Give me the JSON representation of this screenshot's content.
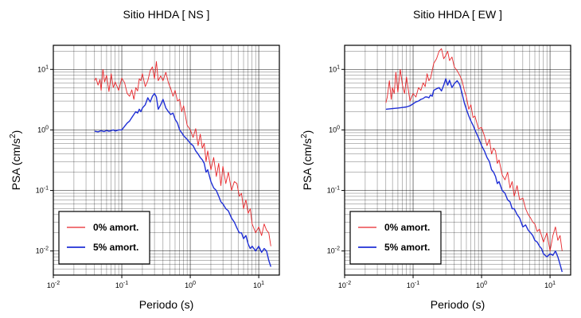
{
  "chart_data": [
    {
      "type": "line",
      "title": "Sitio HHDA [ NS ]",
      "xlabel": "Periodo (s)",
      "ylabel_base": "PSA (cm/s",
      "ylabel_exp": "2",
      "ylabel_close": ")",
      "xscale": "log",
      "yscale": "log",
      "xlim": [
        0.01,
        20
      ],
      "ylim": [
        0.004,
        25
      ],
      "grid": true,
      "legend_position": "bottom-left",
      "x_ticks": [
        {
          "base": "10",
          "exp": "-2",
          "value": 0.01
        },
        {
          "base": "10",
          "exp": "-1",
          "value": 0.1
        },
        {
          "base": "10",
          "exp": "0",
          "value": 1
        },
        {
          "base": "10",
          "exp": "1",
          "value": 10
        }
      ],
      "y_ticks": [
        {
          "base": "10",
          "exp": "-2",
          "value": 0.01
        },
        {
          "base": "10",
          "exp": "-1",
          "value": 0.1
        },
        {
          "base": "10",
          "exp": "0",
          "value": 1
        },
        {
          "base": "10",
          "exp": "1",
          "value": 10
        }
      ],
      "series": [
        {
          "name": "0% amort.",
          "color": "#e8262a",
          "x": [
            0.04,
            0.042,
            0.045,
            0.048,
            0.05,
            0.053,
            0.056,
            0.06,
            0.065,
            0.07,
            0.075,
            0.08,
            0.09,
            0.1,
            0.11,
            0.12,
            0.13,
            0.14,
            0.15,
            0.16,
            0.17,
            0.18,
            0.19,
            0.2,
            0.22,
            0.24,
            0.26,
            0.28,
            0.3,
            0.32,
            0.34,
            0.37,
            0.4,
            0.44,
            0.48,
            0.52,
            0.56,
            0.6,
            0.65,
            0.7,
            0.75,
            0.8,
            0.9,
            1.0,
            1.1,
            1.2,
            1.3,
            1.4,
            1.5,
            1.6,
            1.7,
            1.8,
            2.0,
            2.2,
            2.4,
            2.6,
            2.8,
            3.0,
            3.3,
            3.6,
            4.0,
            4.4,
            4.8,
            5.2,
            5.6,
            6.0,
            6.5,
            7.0,
            7.5,
            8.0,
            9.0,
            10.0,
            11.0,
            12.0,
            13.0,
            14.0,
            15.0
          ],
          "y": [
            6.5,
            7.2,
            5.5,
            6.8,
            4.5,
            10.0,
            6.2,
            8.0,
            4.3,
            8.5,
            5.0,
            6.2,
            4.5,
            7.2,
            6.0,
            4.0,
            3.6,
            4.6,
            3.2,
            5.0,
            4.4,
            7.0,
            6.5,
            8.5,
            5.2,
            6.5,
            9.5,
            11.0,
            7.0,
            13.5,
            6.5,
            7.8,
            6.5,
            9.0,
            6.0,
            4.8,
            3.6,
            4.5,
            3.0,
            3.2,
            2.0,
            2.5,
            1.2,
            1.0,
            0.75,
            1.05,
            0.55,
            0.85,
            0.5,
            0.6,
            0.3,
            0.45,
            0.22,
            0.35,
            0.17,
            0.28,
            0.12,
            0.25,
            0.13,
            0.2,
            0.1,
            0.14,
            0.13,
            0.08,
            0.09,
            0.05,
            0.07,
            0.042,
            0.05,
            0.028,
            0.02,
            0.025,
            0.018,
            0.028,
            0.022,
            0.02,
            0.012
          ]
        },
        {
          "name": "5% amort.",
          "color": "#1f2fd6",
          "x": [
            0.04,
            0.045,
            0.05,
            0.055,
            0.06,
            0.065,
            0.07,
            0.075,
            0.08,
            0.09,
            0.1,
            0.11,
            0.12,
            0.13,
            0.14,
            0.15,
            0.16,
            0.17,
            0.18,
            0.19,
            0.2,
            0.22,
            0.24,
            0.26,
            0.28,
            0.3,
            0.32,
            0.34,
            0.37,
            0.4,
            0.44,
            0.48,
            0.52,
            0.56,
            0.6,
            0.65,
            0.7,
            0.75,
            0.8,
            0.9,
            1.0,
            1.1,
            1.2,
            1.3,
            1.4,
            1.5,
            1.6,
            1.7,
            1.8,
            2.0,
            2.2,
            2.4,
            2.6,
            2.8,
            3.0,
            3.3,
            3.6,
            4.0,
            4.4,
            4.8,
            5.2,
            5.6,
            6.0,
            6.5,
            7.0,
            7.5,
            8.0,
            9.0,
            10.0,
            11.0,
            12.0,
            13.0,
            14.0,
            15.0
          ],
          "y": [
            0.95,
            0.93,
            0.97,
            0.94,
            0.98,
            0.95,
            0.97,
            1.0,
            0.96,
            1.0,
            1.0,
            1.15,
            1.3,
            1.4,
            1.6,
            1.8,
            2.0,
            1.9,
            2.2,
            2.0,
            2.3,
            2.6,
            3.4,
            2.9,
            3.6,
            4.0,
            3.5,
            2.2,
            2.6,
            3.2,
            2.3,
            2.0,
            1.8,
            1.9,
            1.5,
            1.3,
            1.0,
            0.9,
            0.8,
            0.7,
            0.6,
            0.55,
            0.45,
            0.4,
            0.35,
            0.32,
            0.28,
            0.2,
            0.22,
            0.14,
            0.11,
            0.1,
            0.08,
            0.065,
            0.06,
            0.05,
            0.046,
            0.035,
            0.03,
            0.024,
            0.02,
            0.02,
            0.016,
            0.018,
            0.013,
            0.011,
            0.012,
            0.01,
            0.012,
            0.0095,
            0.011,
            0.01,
            0.007,
            0.0055
          ]
        }
      ]
    },
    {
      "type": "line",
      "title": "Sitio HHDA [ EW ]",
      "xlabel": "Periodo (s)",
      "ylabel_base": "PSA (cm/s",
      "ylabel_exp": "2",
      "ylabel_close": ")",
      "xscale": "log",
      "yscale": "log",
      "xlim": [
        0.01,
        20
      ],
      "ylim": [
        0.004,
        25
      ],
      "grid": true,
      "legend_position": "bottom-left",
      "x_ticks": [
        {
          "base": "10",
          "exp": "-2",
          "value": 0.01
        },
        {
          "base": "10",
          "exp": "-1",
          "value": 0.1
        },
        {
          "base": "10",
          "exp": "0",
          "value": 1
        },
        {
          "base": "10",
          "exp": "1",
          "value": 10
        }
      ],
      "y_ticks": [
        {
          "base": "10",
          "exp": "-2",
          "value": 0.01
        },
        {
          "base": "10",
          "exp": "-1",
          "value": 0.1
        },
        {
          "base": "10",
          "exp": "0",
          "value": 1
        },
        {
          "base": "10",
          "exp": "1",
          "value": 10
        }
      ],
      "series": [
        {
          "name": "0% amort.",
          "color": "#e8262a",
          "x": [
            0.04,
            0.042,
            0.045,
            0.048,
            0.05,
            0.053,
            0.056,
            0.06,
            0.065,
            0.07,
            0.075,
            0.08,
            0.09,
            0.1,
            0.11,
            0.12,
            0.13,
            0.14,
            0.15,
            0.16,
            0.17,
            0.18,
            0.19,
            0.2,
            0.22,
            0.24,
            0.26,
            0.28,
            0.3,
            0.32,
            0.34,
            0.37,
            0.4,
            0.44,
            0.48,
            0.52,
            0.56,
            0.6,
            0.65,
            0.7,
            0.75,
            0.8,
            0.9,
            1.0,
            1.1,
            1.2,
            1.3,
            1.4,
            1.5,
            1.6,
            1.7,
            1.8,
            2.0,
            2.2,
            2.4,
            2.6,
            2.8,
            3.0,
            3.3,
            3.6,
            4.0,
            4.4,
            4.8,
            5.2,
            5.6,
            6.0,
            6.5,
            7.0,
            7.5,
            8.0,
            9.0,
            10.0,
            11.0,
            12.0,
            13.0,
            14.0,
            15.0
          ],
          "y": [
            2.8,
            3.5,
            6.5,
            3.2,
            5.0,
            4.0,
            9.0,
            4.2,
            10.0,
            5.5,
            4.0,
            7.5,
            3.0,
            4.0,
            3.5,
            5.0,
            4.5,
            6.0,
            5.2,
            8.5,
            6.5,
            7.2,
            9.5,
            12.5,
            15.0,
            20.0,
            22.0,
            15.0,
            17.0,
            20.0,
            14.0,
            16.0,
            11.0,
            9.5,
            8.0,
            6.5,
            4.5,
            3.5,
            2.2,
            2.6,
            1.6,
            1.7,
            1.05,
            1.1,
            0.8,
            0.55,
            0.7,
            0.4,
            0.5,
            0.45,
            0.28,
            0.32,
            0.18,
            0.15,
            0.2,
            0.11,
            0.14,
            0.08,
            0.12,
            0.07,
            0.075,
            0.05,
            0.04,
            0.035,
            0.03,
            0.028,
            0.021,
            0.023,
            0.018,
            0.014,
            0.02,
            0.01,
            0.018,
            0.025,
            0.015,
            0.018,
            0.01
          ]
        },
        {
          "name": "5% amort.",
          "color": "#1f2fd6",
          "x": [
            0.04,
            0.05,
            0.06,
            0.07,
            0.08,
            0.09,
            0.1,
            0.11,
            0.12,
            0.13,
            0.14,
            0.15,
            0.16,
            0.17,
            0.18,
            0.19,
            0.2,
            0.22,
            0.24,
            0.26,
            0.28,
            0.3,
            0.32,
            0.34,
            0.37,
            0.4,
            0.44,
            0.48,
            0.52,
            0.56,
            0.6,
            0.65,
            0.7,
            0.75,
            0.8,
            0.9,
            1.0,
            1.1,
            1.2,
            1.3,
            1.4,
            1.5,
            1.6,
            1.7,
            1.8,
            2.0,
            2.2,
            2.4,
            2.6,
            2.8,
            3.0,
            3.3,
            3.6,
            4.0,
            4.4,
            4.8,
            5.2,
            5.6,
            6.0,
            6.5,
            7.0,
            7.5,
            8.0,
            9.0,
            10.0,
            11.0,
            12.0,
            13.0,
            14.0,
            15.0
          ],
          "y": [
            2.2,
            2.25,
            2.3,
            2.35,
            2.4,
            2.5,
            2.7,
            2.9,
            3.0,
            3.2,
            3.3,
            3.5,
            3.5,
            3.4,
            3.8,
            3.6,
            4.5,
            4.8,
            5.0,
            4.4,
            5.5,
            7.0,
            5.5,
            6.6,
            5.0,
            5.8,
            6.5,
            5.6,
            4.0,
            2.8,
            2.2,
            1.7,
            1.4,
            1.2,
            1.0,
            0.75,
            0.55,
            0.45,
            0.35,
            0.3,
            0.22,
            0.2,
            0.17,
            0.13,
            0.14,
            0.1,
            0.09,
            0.07,
            0.065,
            0.05,
            0.05,
            0.04,
            0.035,
            0.025,
            0.027,
            0.022,
            0.02,
            0.018,
            0.015,
            0.014,
            0.012,
            0.011,
            0.009,
            0.008,
            0.009,
            0.0085,
            0.01,
            0.008,
            0.006,
            0.0045
          ]
        }
      ]
    }
  ]
}
